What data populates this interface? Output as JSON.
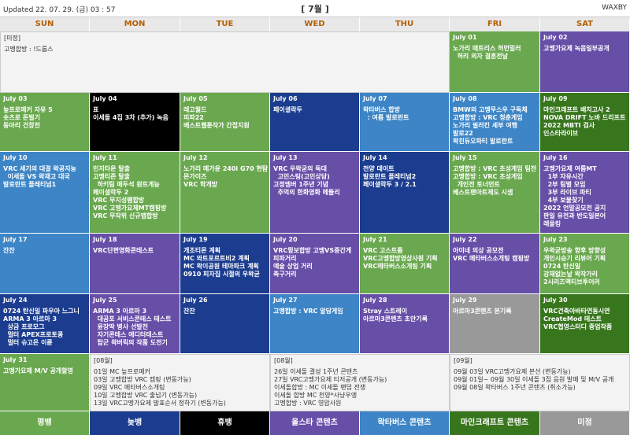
{
  "header": {
    "updated": "Updated 22. 07. 29. (금)  03 : 57",
    "month": "[ 7월 ]",
    "user": "WAXBY"
  },
  "weekdays": [
    "SUN",
    "MON",
    "TUE",
    "WED",
    "THU",
    "FRI",
    "SAT"
  ],
  "unscheduled": {
    "label": "[미정]",
    "lines": [
      "고멩합방 : !드롭스"
    ]
  },
  "days": [
    {
      "date": "July 01",
      "color": "#6aa84f",
      "lines": [
        "노가리 매트리스 허먼밀러",
        "  허리 의자 결혼전날"
      ]
    },
    {
      "date": "July 02",
      "color": "#674ea7",
      "lines": [
        "고멩가요제 녹음일부공개"
      ]
    },
    {
      "date": "July 03",
      "color": "#6aa84f",
      "lines": [
        "늪프로메커 자유 5",
        "",
        "숏츠로 돈벌기",
        "동아리 건창전"
      ]
    },
    {
      "date": "July 04",
      "color": "#000000",
      "lines": [
        "표",
        "이세돌 4집 3차 (추가) 녹음"
      ]
    },
    {
      "date": "July 05",
      "color": "#6aa84f",
      "lines": [
        "레고월드",
        "피파22",
        "베스트웹툰작가 간접지원"
      ]
    },
    {
      "date": "July 06",
      "color": "#1c3d8f",
      "lines": [
        "페이셜락두"
      ]
    },
    {
      "date": "July 07",
      "color": "#3d85c6",
      "lines": [
        "왁타버스 합방",
        "  : 여름 발로란트"
      ]
    },
    {
      "date": "July 08",
      "color": "#3d85c6",
      "lines": [
        "BMW의 고멩무스우 구독체",
        "고멩합방 : VRC 청춘게임",
        "노가리 필러킨 세부 여행",
        "발로22",
        "왁친듀오파티 발로란트"
      ]
    },
    {
      "date": "July 09",
      "color": "#38761d",
      "lines": [
        "마인크래프트 배치고사 2",
        "NOVA DRIFT 노바 드리프트",
        "2022 MBTI 검사",
        "인스타라이브"
      ]
    },
    {
      "date": "July 10",
      "color": "#3d85c6",
      "lines": [
        "VRC 세기의 대결 왁공지능",
        "  이세돌 VS 왁재고 대국",
        "발로란트 플레티넘1"
      ]
    },
    {
      "date": "July 11",
      "color": "#6aa84f",
      "lines": [
        "민지타운 탈출",
        "고멩티즌 탈출",
        "  하키팀 매두석 원트게능",
        "페이셜락두 2",
        "VRC 무지성팸합방",
        "VRC 고멩가요제MT캠핑방",
        "VRC 무작위 신규맵합방"
      ]
    },
    {
      "date": "July 12",
      "color": "#6aa84f",
      "lines": [
        "노가리 메가윤 240i G70 현탐",
        "몬가이즈",
        "VRC 학개방"
      ]
    },
    {
      "date": "July 13",
      "color": "#674ea7",
      "lines": [
        "VRC 우왁굳의 둑대",
        "  고민스팅(고민상담)",
        "고정멤버 1주년 기념",
        "  추억의 한화영화 메들리"
      ]
    },
    {
      "date": "July 14",
      "color": "#1c3d8f",
      "lines": [
        "천양 데이트",
        "발로란트 플레티넘2",
        "페이셜락두 3 / 2.1"
      ]
    },
    {
      "date": "July 15",
      "color": "#6aa84f",
      "lines": [
        "고멩합방 : VRC 초성게임 팀전",
        "고멩합방 : VRC 초성게임",
        "  개인전 토너먼트",
        "베스트팬아트제도 시샘"
      ]
    },
    {
      "date": "July 16",
      "color": "#674ea7",
      "lines": [
        "고멩가요제 여름MT",
        "  1부 자유시간",
        "  2부 팀별 모임",
        "  3부 라이브 파티",
        "  4부 보물찾기",
        "2022 언말공모전 공지",
        "판일 유전과 반도일본어",
        "레올킹"
      ]
    },
    {
      "date": "July 17",
      "color": "#3d85c6",
      "lines": [
        "잔잔"
      ]
    },
    {
      "date": "July 18",
      "color": "#674ea7",
      "lines": [
        "VRC단편영화콘테스트"
      ]
    },
    {
      "date": "July 19",
      "color": "#1c3d8f",
      "lines": [
        "개조티몬 계획",
        "MC 와트포르트비2 계획",
        "MC 왁이공원 테마파크 계획",
        "0910 피자집 시절의 우왁굳"
      ]
    },
    {
      "date": "July 20",
      "color": "#674ea7",
      "lines": [
        "VRC뮝보합방 고멩VS중간게",
        "피파거리",
        "예술 상업 거리",
        "축구거리"
      ]
    },
    {
      "date": "July 21",
      "color": "#6aa84f",
      "lines": [
        "VRC 고스트룸",
        "VRC고멩합방영상사원 기획",
        "VRC메타버스소개팅 기획"
      ]
    },
    {
      "date": "July 22",
      "color": "#674ea7",
      "lines": [
        "아이네 의상 공모전",
        "VRC 메타버스소개팅 캠핑방"
      ]
    },
    {
      "date": "July 23",
      "color": "#6aa84f",
      "lines": [
        "우왁굳방송 향후 방향성",
        "개인시승기 리뷰어 기획",
        "0724 탄신일",
        "강재없는날 왁작가리",
        "2시리즈액티브투어러"
      ]
    },
    {
      "date": "July 24",
      "color": "#1c3d8f",
      "lines": [
        "0724 탄신일 파우아 느그니",
        "ARMA 3 아르마 3",
        "  상금 프로모그",
        "  멀터 APEX프로토콩",
        "  멀터 슈고은 이륜"
      ]
    },
    {
      "date": "July 25",
      "color": "#674ea7",
      "lines": [
        "ARMA 3 아르마 3",
        "  대공포 서비스콘테스 테스트",
        "  윤장딱 병사 선발전",
        "  자기콘테스 에디터테스트",
        "  탑군 왁버릭의 작품 도전기"
      ]
    },
    {
      "date": "July 26",
      "color": "#1c3d8f",
      "lines": [
        "잔잔"
      ]
    },
    {
      "date": "July 27",
      "color": "#3d85c6",
      "lines": [
        "고멩합방 : VRC 알담게임"
      ]
    },
    {
      "date": "July 28",
      "color": "#674ea7",
      "lines": [
        "Stray 스트레이",
        "아르마3콘텐츠 초안기록"
      ]
    },
    {
      "date": "July 29",
      "color": "#999999",
      "lines": [
        "아르마3콘텐츠 본기록"
      ]
    },
    {
      "date": "July 30",
      "color": "#38761d",
      "lines": [
        "VRC건축아바타연동시연",
        "CreateMod 테스트",
        "",
        "VRC협영스터디 증업작품"
      ]
    },
    {
      "date": "July 31",
      "color": "#6aa84f",
      "lines": [
        "고멩가요제 M/V 공개할영"
      ]
    }
  ],
  "notes": [
    {
      "label": "[08월]",
      "lines": [
        "01일 MC 늪프로메커",
        "03일 고멩합방 VRC 캠핑 (변동가능)",
        "09일 VRC 메타버스소개팅",
        "10일 고멩합방 VRC 출넘기 (변동가능)",
        "13일 VRC고멩가요제 발표순서 정하기 (변동가능)"
      ]
    },
    {
      "label": "[08월]",
      "lines": [
        "26일 이세돌 결성 1주년 콘텐츠",
        "27일 VRC고멩가요제 티저공개 (변동가능)",
        "",
        "이세돌합방 : MC 이세돌 팬덤 전쟁",
        "이세돌 합방 MC 천양*사냥우엥",
        "고멩합방 : VRC 영압사원"
      ]
    },
    {
      "label": "[09월]",
      "lines": [
        "09월 03일 VRC고멩가요제 본선 (변동가능)",
        "09월 01일~ 09월 30일 이세돌 3집 음원 발매 및 M/V 공개",
        "09월 08일 왁타버스 1주년 콘텐츠 (취소가능)"
      ]
    }
  ],
  "legend": [
    {
      "label": "평뱅",
      "color": "#6aa84f"
    },
    {
      "label": "늦뱅",
      "color": "#1c3d8f"
    },
    {
      "label": "휴뱅",
      "color": "#000000"
    },
    {
      "label": "올스타 콘텐츠",
      "color": "#674ea7"
    },
    {
      "label": "왁타버스 콘텐츠",
      "color": "#3d85c6"
    },
    {
      "label": "마인크래프트 콘텐츠",
      "color": "#38761d"
    },
    {
      "label": "미정",
      "color": "#999999"
    }
  ]
}
